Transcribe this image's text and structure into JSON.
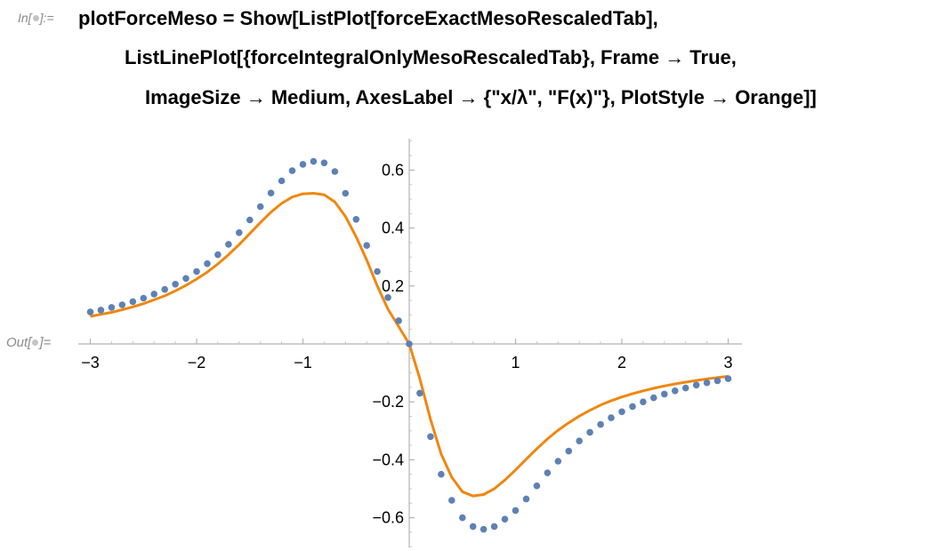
{
  "notebook": {
    "in_label": "In[",
    "in_label_end": "]:=",
    "out_label": "Out[",
    "out_label_end": "]=",
    "code_lines": [
      "plotForceMeso = Show[ListPlot[forceExactMesoRescaledTab],",
      "ListLinePlot[{forceIntegralOnlyMesoRescaledTab}, Frame → True,",
      "ImageSize → Medium, AxesLabel → {\"x/λ\", \"F(x)\"}, PlotStyle → Orange]]"
    ]
  },
  "chart_data": {
    "type": "scatter+line",
    "xlim": [
      -3,
      3
    ],
    "ylim": [
      -0.7,
      0.7
    ],
    "grid": false,
    "x_ticks": [
      -3,
      -2,
      -1,
      1,
      2,
      3
    ],
    "x_tick_labels": [
      "−3",
      "−2",
      "−1",
      "1",
      "2",
      "3"
    ],
    "y_ticks": [
      0.6,
      0.4,
      0.2,
      -0.2,
      -0.4,
      -0.6
    ],
    "y_tick_labels": [
      "0.6",
      "0.4",
      "0.2",
      "−0.2",
      "−0.4",
      "−0.6"
    ],
    "series": [
      {
        "type": "scatter",
        "color": "#5e81b5",
        "x": [
          -3.0,
          -2.9,
          -2.8,
          -2.7,
          -2.6,
          -2.5,
          -2.4,
          -2.3,
          -2.2,
          -2.1,
          -2.0,
          -1.9,
          -1.8,
          -1.7,
          -1.6,
          -1.5,
          -1.4,
          -1.3,
          -1.2,
          -1.1,
          -1.0,
          -0.9,
          -0.8,
          -0.7,
          -0.6,
          -0.5,
          -0.4,
          -0.3,
          -0.2,
          -0.1,
          0.0,
          0.1,
          0.2,
          0.3,
          0.4,
          0.5,
          0.6,
          0.7,
          0.8,
          0.9,
          1.0,
          1.1,
          1.2,
          1.3,
          1.4,
          1.5,
          1.6,
          1.7,
          1.8,
          1.9,
          2.0,
          2.1,
          2.2,
          2.3,
          2.4,
          2.5,
          2.6,
          2.7,
          2.8,
          2.9,
          3.0
        ],
        "y": [
          0.11,
          0.117,
          0.126,
          0.135,
          0.146,
          0.158,
          0.172,
          0.188,
          0.206,
          0.226,
          0.25,
          0.277,
          0.308,
          0.344,
          0.384,
          0.428,
          0.474,
          0.521,
          0.563,
          0.598,
          0.62,
          0.63,
          0.625,
          0.595,
          0.52,
          0.43,
          0.34,
          0.25,
          0.16,
          0.08,
          0.0,
          -0.17,
          -0.32,
          -0.45,
          -0.54,
          -0.6,
          -0.63,
          -0.64,
          -0.63,
          -0.605,
          -0.575,
          -0.535,
          -0.49,
          -0.445,
          -0.405,
          -0.37,
          -0.335,
          -0.305,
          -0.278,
          -0.255,
          -0.234,
          -0.216,
          -0.2,
          -0.186,
          -0.173,
          -0.162,
          -0.152,
          -0.142,
          -0.134,
          -0.127,
          -0.12
        ]
      },
      {
        "type": "line",
        "color": "#f0870f",
        "x": [
          -3.0,
          -2.9,
          -2.8,
          -2.7,
          -2.6,
          -2.5,
          -2.4,
          -2.3,
          -2.2,
          -2.1,
          -2.0,
          -1.9,
          -1.8,
          -1.7,
          -1.6,
          -1.5,
          -1.4,
          -1.3,
          -1.2,
          -1.1,
          -1.0,
          -0.9,
          -0.8,
          -0.7,
          -0.6,
          -0.5,
          -0.4,
          -0.3,
          -0.2,
          -0.1,
          0.0,
          0.1,
          0.2,
          0.3,
          0.4,
          0.5,
          0.6,
          0.7,
          0.8,
          0.9,
          1.0,
          1.1,
          1.2,
          1.3,
          1.4,
          1.5,
          1.6,
          1.7,
          1.8,
          1.9,
          2.0,
          2.1,
          2.2,
          2.3,
          2.4,
          2.5,
          2.6,
          2.7,
          2.8,
          2.9,
          3.0
        ],
        "y": [
          0.095,
          0.102,
          0.109,
          0.118,
          0.128,
          0.139,
          0.152,
          0.166,
          0.183,
          0.202,
          0.224,
          0.248,
          0.276,
          0.308,
          0.343,
          0.381,
          0.419,
          0.455,
          0.485,
          0.507,
          0.518,
          0.52,
          0.515,
          0.49,
          0.44,
          0.37,
          0.29,
          0.2,
          0.12,
          0.06,
          0.0,
          -0.12,
          -0.26,
          -0.38,
          -0.46,
          -0.51,
          -0.525,
          -0.52,
          -0.5,
          -0.47,
          -0.435,
          -0.398,
          -0.362,
          -0.328,
          -0.298,
          -0.272,
          -0.249,
          -0.229,
          -0.211,
          -0.196,
          -0.183,
          -0.172,
          -0.162,
          -0.153,
          -0.145,
          -0.138,
          -0.132,
          -0.126,
          -0.121,
          -0.116,
          -0.112
        ]
      }
    ]
  }
}
